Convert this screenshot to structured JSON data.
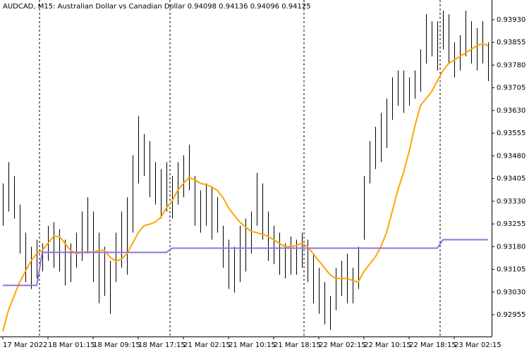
{
  "chart_data": {
    "type": "ohlc",
    "title": "AUDCAD, M15:  Australian Dollar vs Canadian Dollar  0.94098 0.94136 0.94096 0.94125",
    "categories": [
      "17 Mar 2022",
      null,
      null,
      null,
      null,
      null,
      null,
      null,
      "18 Mar 01:15",
      null,
      null,
      null,
      null,
      null,
      null,
      null,
      "18 Mar 09:15",
      null,
      null,
      null,
      null,
      null,
      null,
      null,
      "18 Mar 17:15",
      null,
      null,
      null,
      null,
      null,
      null,
      null,
      "21 Mar 02:15",
      null,
      null,
      null,
      null,
      null,
      null,
      null,
      "21 Mar 10:15",
      null,
      null,
      null,
      null,
      null,
      null,
      null,
      "21 Mar 18:15",
      null,
      null,
      null,
      null,
      null,
      null,
      null,
      "22 Mar 02:15",
      null,
      null,
      null,
      null,
      null,
      null,
      null,
      "22 Mar 10:15",
      null,
      null,
      null,
      null,
      null,
      null,
      null,
      "22 Mar 18:15",
      null,
      null,
      null,
      null,
      null,
      null,
      null,
      "23 Mar 02:15",
      null,
      null,
      null,
      null,
      null,
      null
    ],
    "high": [
      0.93389,
      0.93459,
      0.93413,
      0.93319,
      0.93226,
      0.9318,
      0.93203,
      0.93191,
      0.93249,
      0.93261,
      0.93238,
      0.93203,
      0.93191,
      0.93226,
      0.93296,
      0.93343,
      0.93296,
      0.93226,
      0.9318,
      0.93133,
      0.93226,
      0.93296,
      0.93343,
      0.93482,
      0.93611,
      0.93552,
      0.93529,
      0.93459,
      0.93436,
      0.93459,
      0.93413,
      0.93459,
      0.93482,
      0.93517,
      0.93413,
      0.93366,
      0.93389,
      0.93378,
      0.93343,
      0.93249,
      0.93203,
      0.9318,
      0.93249,
      0.93273,
      0.93296,
      0.93424,
      0.93389,
      0.93296,
      0.93249,
      0.93226,
      0.93191,
      0.93214,
      0.93203,
      0.93226,
      0.93203,
      0.93157,
      0.9311,
      0.93063,
      0.93017,
      0.9311,
      0.93133,
      0.93157,
      0.9311,
      0.9318,
      0.93413,
      0.93529,
      0.93576,
      0.93622,
      0.93669,
      0.93739,
      0.93762,
      0.93762,
      0.93739,
      0.93762,
      0.93832,
      0.93948,
      0.93925,
      0.93925,
      0.9396,
      0.93948,
      0.93855,
      0.93879,
      0.9396,
      0.93925,
      0.93902,
      0.93925,
      0.93855
    ],
    "low": [
      0.93249,
      0.93296,
      0.93273,
      0.93157,
      0.93063,
      0.9304,
      0.93075,
      0.93098,
      0.93133,
      0.9311,
      0.93098,
      0.93052,
      0.93063,
      0.9311,
      0.93133,
      0.93157,
      0.93063,
      0.92993,
      0.93017,
      0.92958,
      0.93063,
      0.9311,
      0.93087,
      0.93226,
      0.93389,
      0.93413,
      0.93343,
      0.93319,
      0.93273,
      0.93296,
      0.93273,
      0.93319,
      0.93343,
      0.93366,
      0.93249,
      0.93226,
      0.93249,
      0.93203,
      0.93226,
      0.9311,
      0.9304,
      0.93028,
      0.93063,
      0.93098,
      0.93157,
      0.93249,
      0.93203,
      0.93133,
      0.93122,
      0.93087,
      0.93075,
      0.93087,
      0.93087,
      0.9311,
      0.93063,
      0.92993,
      0.92958,
      0.92923,
      0.92905,
      0.9297,
      0.93017,
      0.92993,
      0.92993,
      0.9304,
      0.93203,
      0.93389,
      0.93436,
      0.93459,
      0.93506,
      0.93599,
      0.93646,
      0.93622,
      0.93646,
      0.93669,
      0.93692,
      0.93785,
      0.93809,
      0.93762,
      0.93832,
      0.93785,
      0.93739,
      0.93762,
      0.93809,
      0.93785,
      0.93762,
      0.93785,
      0.93727
    ],
    "bar_color": "#000000",
    "series": [
      {
        "color": "#ffa500",
        "values": [
          0.929,
          0.9297,
          0.93017,
          0.93063,
          0.93098,
          0.93133,
          0.93157,
          0.93168,
          0.93191,
          0.93214,
          0.93214,
          0.93191,
          0.93168,
          0.93157,
          0.93161,
          0.93163,
          0.93161,
          0.93168,
          0.93168,
          0.93145,
          0.93133,
          0.93138,
          0.93157,
          0.93191,
          0.93226,
          0.93249,
          0.93254,
          0.93261,
          0.93277,
          0.93308,
          0.93331,
          0.93366,
          0.93389,
          0.93408,
          0.93401,
          0.93389,
          0.93385,
          0.93378,
          0.93366,
          0.93343,
          0.93308,
          0.93284,
          0.93261,
          0.93245,
          0.93231,
          0.93226,
          0.93221,
          0.93214,
          0.93203,
          0.93191,
          0.9318,
          0.9318,
          0.93184,
          0.93191,
          0.9318,
          0.93157,
          0.93133,
          0.9311,
          0.93087,
          0.93075,
          0.93075,
          0.93075,
          0.93068,
          0.93063,
          0.93098,
          0.93122,
          0.93145,
          0.9318,
          0.93226,
          0.93296,
          0.93366,
          0.93424,
          0.93494,
          0.93576,
          0.93646,
          0.93669,
          0.93692,
          0.93727,
          0.93762,
          0.93785,
          0.93797,
          0.93809,
          0.9382,
          0.93832,
          0.93844,
          0.93851,
          0.93844
        ]
      },
      {
        "color": "#9370db",
        "values": [
          0.93052,
          0.93052,
          0.93052,
          0.93052,
          0.93052,
          0.93052,
          0.93052,
          0.93161,
          0.93161,
          0.93161,
          0.93161,
          0.93161,
          0.93161,
          0.93161,
          0.93161,
          0.93161,
          0.93161,
          0.93161,
          0.93161,
          0.93161,
          0.93161,
          0.93161,
          0.93161,
          0.93161,
          0.93161,
          0.93161,
          0.93161,
          0.93161,
          0.93161,
          0.93161,
          0.93175,
          0.93175,
          0.93175,
          0.93175,
          0.93175,
          0.93175,
          0.93175,
          0.93175,
          0.93175,
          0.93175,
          0.93175,
          0.93175,
          0.93175,
          0.93175,
          0.93175,
          0.93175,
          0.93175,
          0.93175,
          0.93175,
          0.93175,
          0.93175,
          0.93175,
          0.93175,
          0.93175,
          0.93175,
          0.93175,
          0.93175,
          0.93175,
          0.93175,
          0.93175,
          0.93175,
          0.93175,
          0.93175,
          0.93175,
          0.93175,
          0.93175,
          0.93175,
          0.93175,
          0.93175,
          0.93175,
          0.93175,
          0.93175,
          0.93175,
          0.93175,
          0.93175,
          0.93175,
          0.93175,
          0.93175,
          0.93203,
          0.93203,
          0.93203,
          0.93203,
          0.93203,
          0.93203,
          0.93203,
          0.93203,
          0.93203
        ]
      }
    ],
    "ylim": [
      0.92883,
      0.93995
    ],
    "yticks": [
      {
        "value": 0.9393,
        "label": "0.93930"
      },
      {
        "value": 0.93855,
        "label": "0.93855"
      },
      {
        "value": 0.9378,
        "label": "0.93780"
      },
      {
        "value": 0.93705,
        "label": "0.93705"
      },
      {
        "value": 0.9363,
        "label": "0.93630"
      },
      {
        "value": 0.93555,
        "label": "0.93555"
      },
      {
        "value": 0.9348,
        "label": "0.93480"
      },
      {
        "value": 0.93405,
        "label": "0.93405"
      },
      {
        "value": 0.9333,
        "label": "0.93330"
      },
      {
        "value": 0.93255,
        "label": "0.93255"
      },
      {
        "value": 0.9318,
        "label": "0.93180"
      },
      {
        "value": 0.93105,
        "label": "0.93105"
      },
      {
        "value": 0.9303,
        "label": "0.93030"
      },
      {
        "value": 0.92955,
        "label": "0.92955"
      }
    ]
  }
}
